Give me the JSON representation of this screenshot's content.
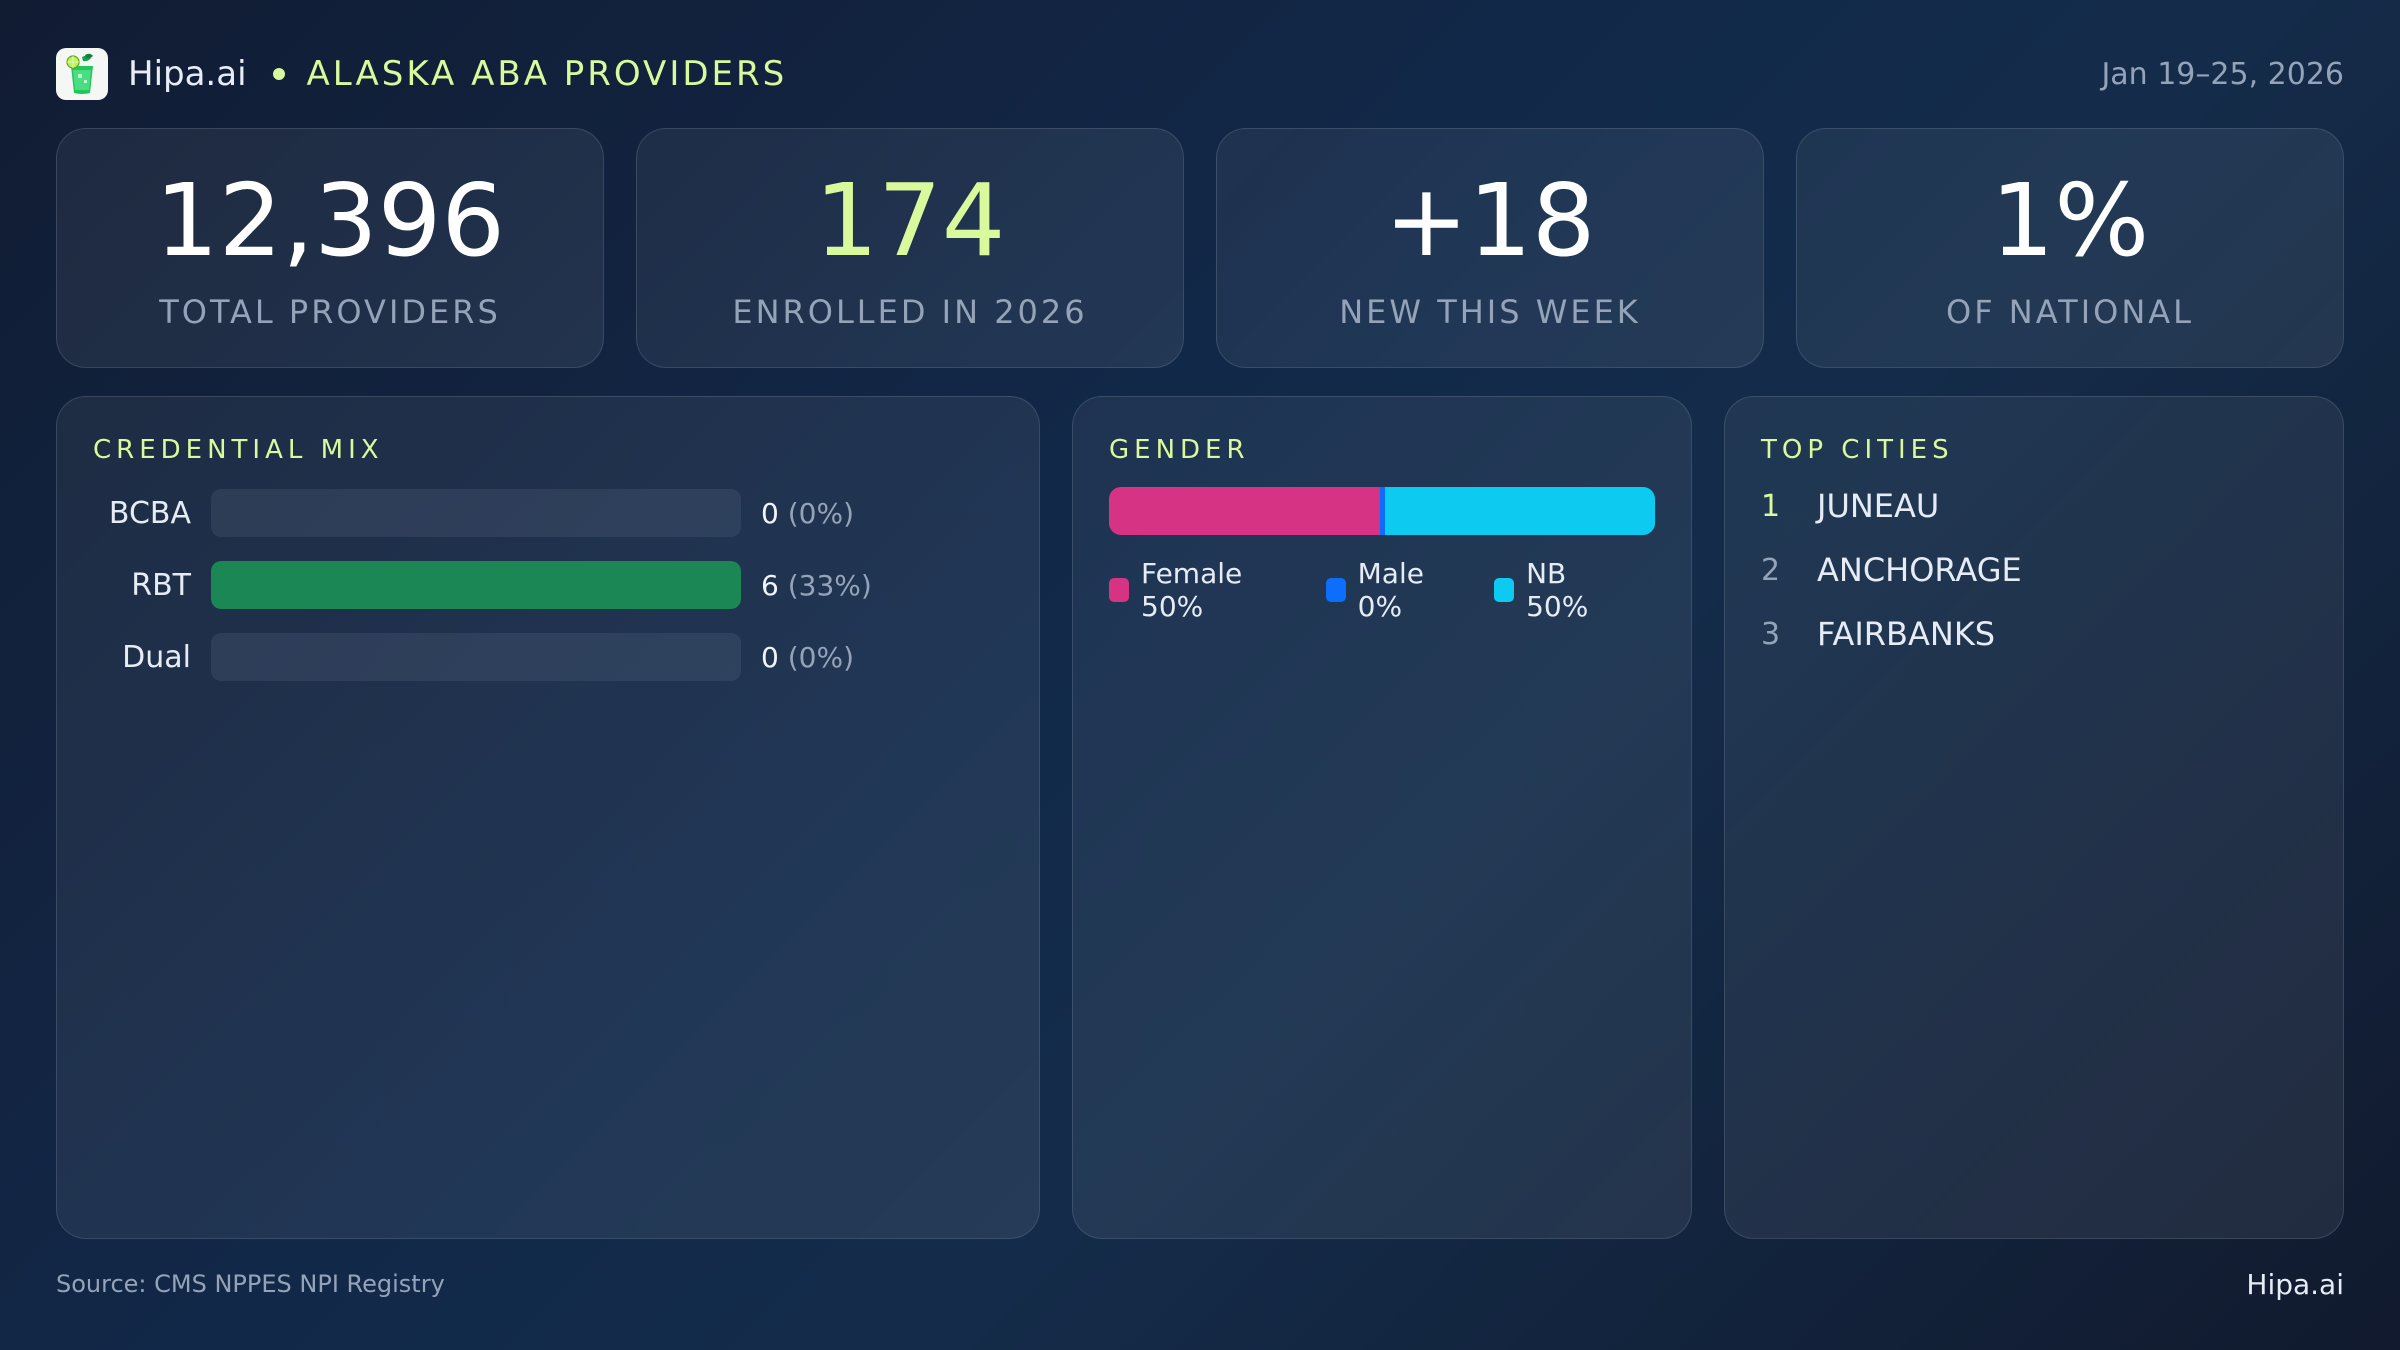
{
  "header": {
    "brand": "Hipa.ai",
    "title": "ALASKA ABA PROVIDERS",
    "date_range": "Jan 19–25, 2026",
    "logo_icon": "mojito-glass-icon"
  },
  "kpis": [
    {
      "value": "12,396",
      "label": "TOTAL PROVIDERS",
      "accent": false
    },
    {
      "value": "174",
      "label": "ENROLLED IN 2026",
      "accent": true
    },
    {
      "value": "+18",
      "label": "NEW THIS WEEK",
      "accent": false
    },
    {
      "value": "1%",
      "label": "OF NATIONAL",
      "accent": false
    }
  ],
  "credential_mix": {
    "title": "CREDENTIAL MIX",
    "rows": [
      {
        "label": "BCBA",
        "count": "0",
        "pct": "(0%)",
        "fill_pct": 0
      },
      {
        "label": "RBT",
        "count": "6",
        "pct": "(33%)",
        "fill_pct": 100
      },
      {
        "label": "Dual",
        "count": "0",
        "pct": "(0%)",
        "fill_pct": 0
      }
    ]
  },
  "gender": {
    "title": "GENDER",
    "segments": [
      {
        "label": "Female 50%",
        "name": "Female",
        "pct": 50,
        "color": "#d63384"
      },
      {
        "label": "Male 0%",
        "name": "Male",
        "pct": 0,
        "color": "#0d6efd"
      },
      {
        "label": "NB 50%",
        "name": "NB",
        "pct": 50,
        "color": "#0dcaf0"
      }
    ]
  },
  "top_cities": {
    "title": "TOP CITIES",
    "items": [
      {
        "rank": "1",
        "name": "JUNEAU"
      },
      {
        "rank": "2",
        "name": "ANCHORAGE"
      },
      {
        "rank": "3",
        "name": "FAIRBANKS"
      }
    ]
  },
  "footer": {
    "source": "Source: CMS NPPES NPI Registry",
    "brand": "Hipa.ai"
  },
  "colors": {
    "accent": "#d9f99d",
    "rbt_bar": "#1a8754",
    "female": "#d63384",
    "male": "#0d6efd",
    "nb": "#0dcaf0"
  }
}
